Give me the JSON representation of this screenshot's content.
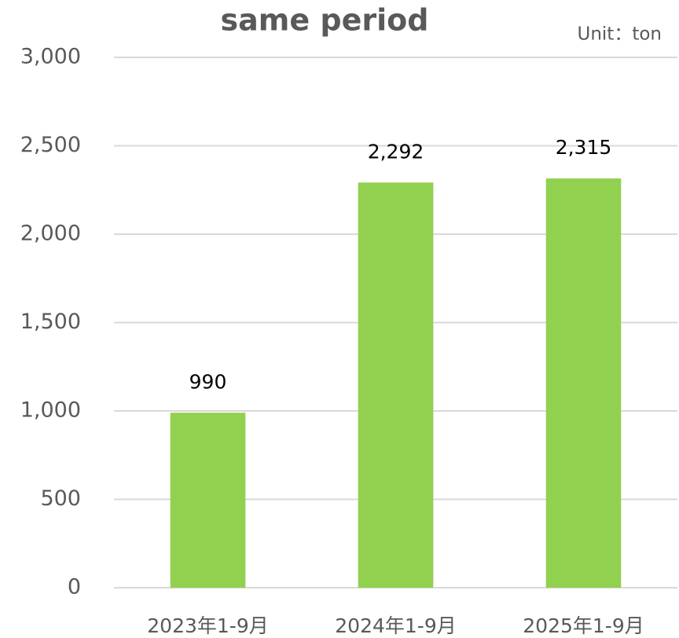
{
  "chart_data": {
    "type": "bar",
    "title": "same period",
    "annotation": "Unit：ton",
    "categories": [
      "2023年1-9月",
      "2024年1-9月",
      "2025年1-9月"
    ],
    "values": [
      990,
      2292,
      2315
    ],
    "value_labels": [
      "990",
      "2,292",
      "2,315"
    ],
    "color": "#92d050",
    "ylim": [
      0,
      3000
    ],
    "yticks": [
      0,
      500,
      {
        "value": 1000,
        "label": "1,000"
      },
      {
        "value": 1500,
        "label": "1,500"
      },
      {
        "value": 2000,
        "label": "2,000"
      },
      {
        "value": 2500,
        "label": "2,500"
      },
      {
        "value": 3000,
        "label": "3,000"
      }
    ],
    "grid": true
  }
}
